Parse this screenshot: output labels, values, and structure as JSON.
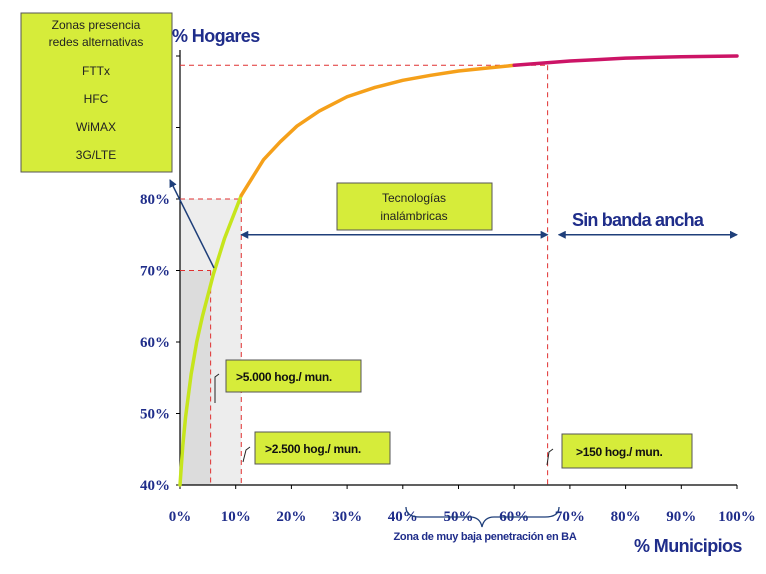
{
  "chart_data": {
    "type": "line",
    "title": "",
    "ylabel": "% Hogares",
    "xlabel": "% Municipios",
    "x_ticks": [
      "0%",
      "10%",
      "20%",
      "30%",
      "40%",
      "50%",
      "60%",
      "70%",
      "80%",
      "90%",
      "100%"
    ],
    "y_ticks": [
      "40%",
      "50%",
      "60%",
      "70%",
      "80%"
    ],
    "xlim": [
      0,
      100
    ],
    "ylim": [
      40,
      100
    ],
    "grid": false,
    "series": [
      {
        "segment": "light-green",
        "color": "#c6e51c",
        "x": [
          0,
          0.5,
          1,
          2,
          3,
          4,
          5,
          6,
          7,
          8,
          9,
          10,
          11
        ],
        "y": [
          40,
          45.5,
          49.5,
          55.5,
          60,
          63.5,
          66.5,
          69.5,
          72,
          74.5,
          76.5,
          78.5,
          80.5
        ]
      },
      {
        "segment": "orange",
        "color": "#f5a01a",
        "x": [
          11,
          13,
          15,
          18,
          21,
          25,
          30,
          35,
          40,
          45,
          50,
          55,
          60
        ],
        "y": [
          80.5,
          83,
          85.5,
          88,
          90.2,
          92.3,
          94.3,
          95.6,
          96.6,
          97.3,
          97.9,
          98.3,
          98.7
        ]
      },
      {
        "segment": "magenta",
        "color": "#cc1466",
        "x": [
          60,
          65,
          70,
          75,
          80,
          85,
          90,
          95,
          100
        ],
        "y": [
          98.7,
          99,
          99.3,
          99.5,
          99.7,
          99.8,
          99.9,
          99.95,
          100
        ]
      }
    ],
    "reference_lines": {
      "h_top": 98.7,
      "h_80": 80,
      "h_70": 70,
      "v_small": 5.5,
      "v_mid": 11,
      "v_right": 66
    },
    "range_arrows": [
      {
        "from": 11,
        "to": 66,
        "y": 75
      },
      {
        "from": 68,
        "to": 100,
        "y": 75
      }
    ]
  },
  "annotations": {
    "legend_box_lines": [
      "Zonas presencia",
      "redes alternativas",
      "FTTx",
      "HFC",
      "WiMAX",
      "3G/LTE"
    ],
    "tecnologias_lines": [
      "Tecnologías",
      "inalámbricas"
    ],
    "sin_banda": "Sin banda ancha",
    "label_5000": ">5.000 hog./ mun.",
    "label_2500": ">2.500 hog./ mun.",
    "label_150": ">150 hog./ mun.",
    "zona_baja": "Zona de muy baja penetración en BA"
  },
  "colors": {
    "axis_text": "#1f2d8a",
    "box_fill": "#d6ec3a",
    "box_border": "#555555",
    "dashed": "#e03030",
    "arrow": "#1f3f7a"
  }
}
